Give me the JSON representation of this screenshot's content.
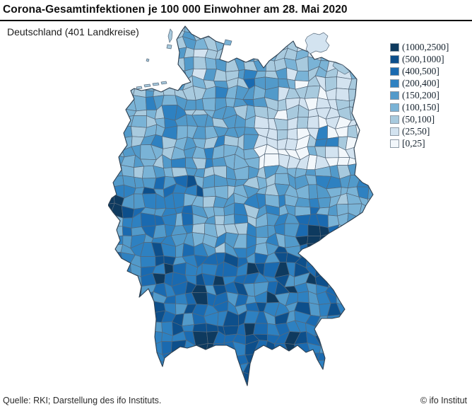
{
  "title": "Corona-Gesamtinfektionen je 100 000 Einwohner am 28. Mai 2020",
  "subtitle": "Deutschland (401 Landkreise)",
  "footer": {
    "source": "Quelle: RKI; Darstellung des ifo Instituts.",
    "copyright": "© ifo Institut"
  },
  "chart_data": {
    "type": "choropleth-map",
    "title": "Corona-Gesamtinfektionen je 100 000 Einwohner am 28. Mai 2020",
    "region": "Deutschland",
    "districts_count": 401,
    "unit": "Gesamtinfektionen je 100 000 Einwohner",
    "date": "28. Mai 2020",
    "legend_position": "top-right",
    "legend": [
      {
        "label": "(1000,2500]",
        "color": "#0e3a5f"
      },
      {
        "label": "(500,1000]",
        "color": "#0d4f8b"
      },
      {
        "label": "(400,500]",
        "color": "#1a6ab0"
      },
      {
        "label": "(200,400]",
        "color": "#2e81c1"
      },
      {
        "label": "(150,200]",
        "color": "#529aca"
      },
      {
        "label": "(100,150]",
        "color": "#7ab3d6"
      },
      {
        "label": "(50,100]",
        "color": "#a8cade"
      },
      {
        "label": "(25,50]",
        "color": "#d3e3f0"
      },
      {
        "label": "[0,25]",
        "color": "#f2f7fb"
      }
    ],
    "spatial_pattern": "Nordosten (Mecklenburg-Vorpommern, Brandenburg) sehr niedrige Werte; Westen (NRW) und Sueden (Bayern, Baden-Wuerttemberg) hohe Werte; dunkelste Hotspots in Nordost-Bayern, Suedbayern, Suedwesten und Heinsberg",
    "border_color": "#55687a",
    "outline_color": "#2d3f50"
  }
}
